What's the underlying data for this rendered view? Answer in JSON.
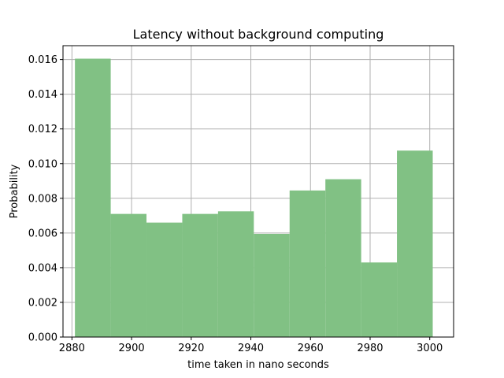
{
  "chart_data": {
    "type": "bar",
    "title": "Latency without background computing",
    "xlabel": "time taken in nano seconds",
    "ylabel": "Probability",
    "xlim": [
      2877,
      3008
    ],
    "ylim": [
      0,
      0.0168
    ],
    "grid": true,
    "bar_color": "#81c184",
    "bins": [
      {
        "x0": 2881,
        "x1": 2893,
        "value": 0.01605
      },
      {
        "x0": 2893,
        "x1": 2905,
        "value": 0.0071
      },
      {
        "x0": 2905,
        "x1": 2917,
        "value": 0.0066
      },
      {
        "x0": 2917,
        "x1": 2929,
        "value": 0.0071
      },
      {
        "x0": 2929,
        "x1": 2941,
        "value": 0.00725
      },
      {
        "x0": 2941,
        "x1": 2953,
        "value": 0.00595
      },
      {
        "x0": 2953,
        "x1": 2965,
        "value": 0.00845
      },
      {
        "x0": 2965,
        "x1": 2977,
        "value": 0.0091
      },
      {
        "x0": 2977,
        "x1": 2989,
        "value": 0.0043
      },
      {
        "x0": 2989,
        "x1": 3001,
        "value": 0.01075
      }
    ],
    "x_ticks": [
      2880,
      2900,
      2920,
      2940,
      2960,
      2980,
      3000
    ],
    "x_tick_labels": [
      "2880",
      "2900",
      "2920",
      "2940",
      "2960",
      "2980",
      "3000"
    ],
    "y_ticks": [
      0,
      0.002,
      0.004,
      0.006,
      0.008,
      0.01,
      0.012,
      0.014,
      0.016
    ],
    "y_tick_labels": [
      "0.000",
      "0.002",
      "0.004",
      "0.006",
      "0.008",
      "0.010",
      "0.012",
      "0.014",
      "0.016"
    ]
  }
}
